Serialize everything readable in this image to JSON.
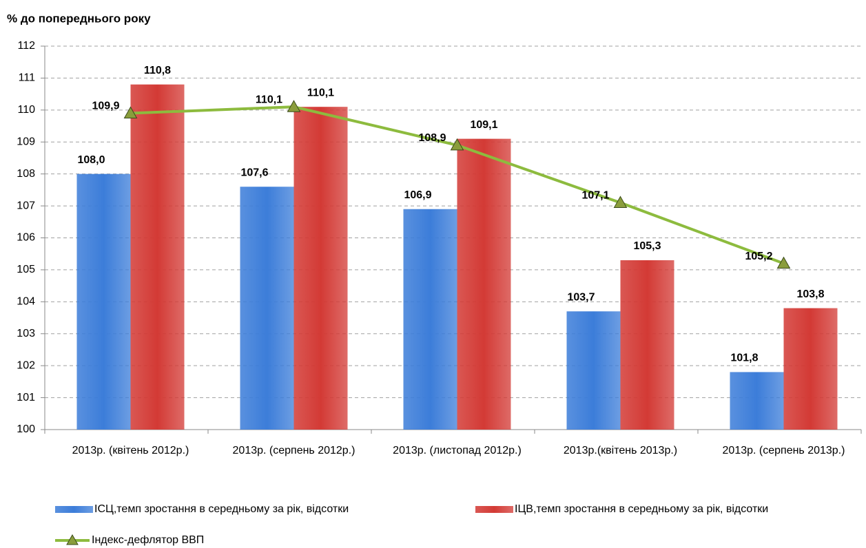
{
  "chart_data": {
    "type": "bar",
    "ylabel": "% до попереднього року",
    "categories": [
      "2013р. (квітень 2012р.)",
      "2013р. (серпень 2012р.)",
      "2013р. (листопад 2012р.)",
      "2013р.(квітень 2013р.)",
      "2013р. (серпень 2013р.)"
    ],
    "series": [
      {
        "name": "ІСЦ,темп зростання в середньому за рік, відсотки",
        "type": "bar",
        "color": "#3c7dd9",
        "values": [
          108.0,
          107.6,
          106.9,
          103.7,
          101.8
        ],
        "value_labels": [
          "108,0",
          "107,6",
          "106,9",
          "103,7",
          "101,8"
        ]
      },
      {
        "name": "ІЦВ,темп зростання в середньому за рік, відсотки",
        "type": "bar",
        "color": "#d33a35",
        "values": [
          110.8,
          110.1,
          109.1,
          105.3,
          103.8
        ],
        "value_labels": [
          "110,8",
          "110,1",
          "109,1",
          "105,3",
          "103,8"
        ]
      },
      {
        "name": "Індекс-дефлятор ВВП",
        "type": "line",
        "color": "#8dbb3e",
        "values": [
          109.9,
          110.1,
          108.9,
          107.1,
          105.2
        ],
        "value_labels": [
          "109,9",
          "110,1",
          "108,9",
          "107,1",
          "105,2"
        ]
      }
    ],
    "ylim": [
      100,
      112
    ],
    "yticks": [
      100,
      101,
      102,
      103,
      104,
      105,
      106,
      107,
      108,
      109,
      110,
      111,
      112
    ],
    "grid": true
  }
}
